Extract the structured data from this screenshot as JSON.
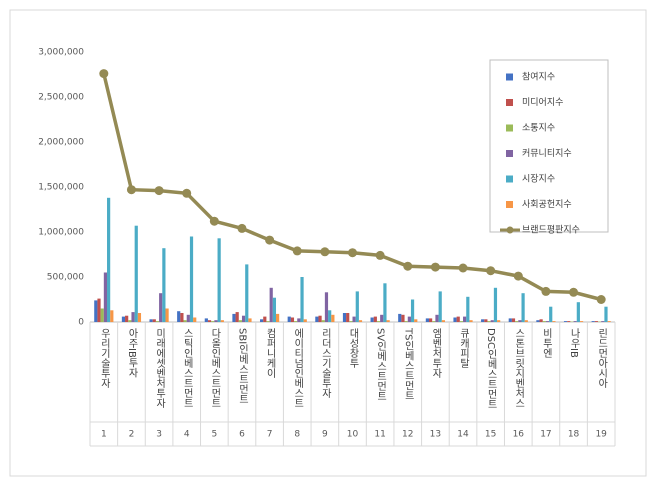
{
  "chart_data": {
    "type": "bar_line",
    "categories": [
      "우리기술투자",
      "아주IB투자",
      "미래에셋벤처투자",
      "스틱인베스트먼트",
      "다올인베스트먼트",
      "SBI인베스트먼트",
      "컴퍼니케이",
      "에이티넘인베스트",
      "리더스기술투자",
      "대성창투",
      "SV인베스트먼트",
      "TS인베스트먼트",
      "엠벤처투자",
      "큐캐피탈",
      "DSC인베스트먼트",
      "스톤브릿지벤처스",
      "비투엔",
      "나우IB",
      "린드먼아시아"
    ],
    "category_numbers": [
      1,
      2,
      3,
      4,
      5,
      6,
      7,
      8,
      9,
      10,
      11,
      12,
      13,
      14,
      15,
      16,
      17,
      18,
      19
    ],
    "series": [
      {
        "name": "참여지수",
        "color": "#4472c4",
        "kind": "bar",
        "values": [
          240000,
          60000,
          30000,
          120000,
          40000,
          90000,
          30000,
          60000,
          60000,
          100000,
          50000,
          90000,
          40000,
          50000,
          30000,
          40000,
          20000,
          10000,
          10000
        ]
      },
      {
        "name": "미디어지수",
        "color": "#c0504d",
        "kind": "bar",
        "values": [
          260000,
          70000,
          30000,
          100000,
          20000,
          110000,
          60000,
          50000,
          70000,
          100000,
          60000,
          80000,
          40000,
          60000,
          30000,
          40000,
          30000,
          10000,
          10000
        ]
      },
      {
        "name": "소통지수",
        "color": "#9bbb59",
        "kind": "bar",
        "values": [
          150000,
          20000,
          10000,
          20000,
          10000,
          20000,
          10000,
          10000,
          20000,
          10000,
          10000,
          10000,
          10000,
          10000,
          10000,
          10000,
          10000,
          5000,
          5000
        ]
      },
      {
        "name": "커뮤니티지수",
        "color": "#8064a2",
        "kind": "bar",
        "values": [
          550000,
          110000,
          320000,
          80000,
          20000,
          70000,
          380000,
          40000,
          330000,
          60000,
          80000,
          60000,
          80000,
          60000,
          20000,
          20000,
          10000,
          10000,
          10000
        ]
      },
      {
        "name": "시장지수",
        "color": "#4bacc6",
        "kind": "bar",
        "values": [
          1380000,
          1070000,
          820000,
          950000,
          930000,
          640000,
          270000,
          500000,
          130000,
          340000,
          430000,
          250000,
          340000,
          280000,
          380000,
          320000,
          170000,
          220000,
          170000
        ]
      },
      {
        "name": "사회공헌지수",
        "color": "#f79646",
        "kind": "bar",
        "values": [
          130000,
          100000,
          150000,
          50000,
          20000,
          40000,
          90000,
          30000,
          80000,
          20000,
          20000,
          30000,
          20000,
          20000,
          20000,
          20000,
          10000,
          10000,
          10000
        ]
      },
      {
        "name": "브랜드평판지수",
        "color": "#948a54",
        "kind": "line",
        "values": [
          2760000,
          1470000,
          1460000,
          1430000,
          1120000,
          1040000,
          910000,
          790000,
          780000,
          770000,
          740000,
          620000,
          610000,
          600000,
          570000,
          510000,
          340000,
          330000,
          250000
        ]
      }
    ],
    "ylim": [
      0,
      3000000
    ],
    "yticks": [
      0,
      {
        "value": 500000,
        "label": "500,000"
      },
      {
        "value": 1000000,
        "label": "1,000,000"
      },
      {
        "value": 1500000,
        "label": "1,500,000"
      },
      {
        "value": 2000000,
        "label": "2,000,000"
      },
      {
        "value": 2500000,
        "label": "2,500,000"
      },
      {
        "value": 3000000,
        "label": "3,000,000"
      }
    ],
    "grid": false,
    "legend": "upper right"
  }
}
